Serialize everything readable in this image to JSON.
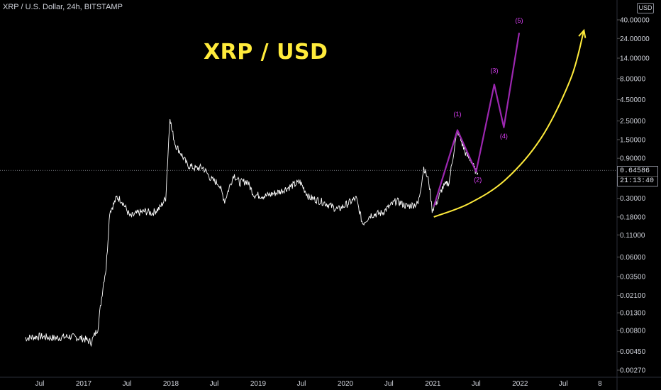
{
  "header": {
    "symbol_info": "XRP / U.S. Dollar, 24h, BITSTAMP",
    "annotation_title": "XRP / USD",
    "currency_badge": "USD"
  },
  "price_label": {
    "last_price": "0.64586",
    "countdown": "21:13:40"
  },
  "colors": {
    "background": "#000000",
    "price_line": "#ffffff",
    "arc": "#ffeb3b",
    "wave": "#9c27b0",
    "wave_label": "#e040fb",
    "axis_text": "#d1d4dc"
  },
  "chart_data": {
    "type": "line",
    "title": "",
    "xlabel": "",
    "ylabel": "",
    "y_scale": "log",
    "ylim": [
      0.0022,
      60
    ],
    "x_ticks": [
      "Jul",
      "2017",
      "Jul",
      "2018",
      "Jul",
      "2019",
      "Jul",
      "2020",
      "Jul",
      "2021",
      "Jul",
      "2022",
      "Jul",
      "8"
    ],
    "y_ticks": [
      "40.00000",
      "24.00000",
      "14.00000",
      "8.00000",
      "4.50000",
      "2.50000",
      "1.50000",
      "0.90000",
      "0.30000",
      "0.18000",
      "0.11000",
      "0.06000",
      "0.03500",
      "0.02100",
      "0.01300",
      "0.00800",
      "0.00450",
      "0.00270"
    ],
    "series": [
      {
        "x": [
          "2016-05",
          "2016-07",
          "2016-09",
          "2016-11",
          "2017-01",
          "2017-02",
          "2017-03",
          "2017-03-25",
          "2017-04-05",
          "2017-04-20",
          "2017-05-05",
          "2017-05-20",
          "2017-06-10",
          "2017-07-15",
          "2017-08-15",
          "2017-09-15",
          "2017-10-15",
          "2017-11-15",
          "2017-12-10",
          "2017-12-28",
          "2018-01-04",
          "2018-01-20",
          "2018-02-10",
          "2018-03-10",
          "2018-04-15",
          "2018-05-15",
          "2018-06-20",
          "2018-07-20",
          "2018-08-14",
          "2018-09-21",
          "2018-10-15",
          "2018-11-15",
          "2018-12-15",
          "2019-02-01",
          "2019-04-01",
          "2019-06-25",
          "2019-08-01",
          "2019-10-01",
          "2019-12-01",
          "2020-02-15",
          "2020-03-13",
          "2020-04-15",
          "2020-06-01",
          "2020-08-01",
          "2020-09-15",
          "2020-11-01",
          "2020-11-24",
          "2020-12-15",
          "2020-12-29",
          "2021-01-20",
          "2021-02-10",
          "2021-03-10",
          "2021-04-01",
          "2021-04-14",
          "2021-05-01",
          "2021-05-20",
          "2021-06-10",
          "2021-06-25",
          "2021-07-08"
        ],
        "values": [
          0.0065,
          0.0068,
          0.0065,
          0.0068,
          0.0064,
          0.0058,
          0.0085,
          0.03,
          0.045,
          0.21,
          0.25,
          0.31,
          0.28,
          0.18,
          0.2,
          0.21,
          0.2,
          0.23,
          0.3,
          2.9,
          2.0,
          1.3,
          1.05,
          0.75,
          0.68,
          0.7,
          0.5,
          0.45,
          0.28,
          0.58,
          0.46,
          0.48,
          0.33,
          0.32,
          0.36,
          0.47,
          0.31,
          0.27,
          0.22,
          0.3,
          0.15,
          0.19,
          0.2,
          0.28,
          0.24,
          0.26,
          0.7,
          0.48,
          0.22,
          0.28,
          0.4,
          0.47,
          1.2,
          1.9,
          1.4,
          1.0,
          0.85,
          0.66,
          0.6
        ]
      },
      {
        "name": "",
        "x": [
          "2021-01-05",
          "2021-04-14",
          "2021-07-01",
          "2021-09-15",
          "2021-10-25",
          "2021-12-28"
        ],
        "values": [
          0.24,
          1.95,
          0.62,
          6.8,
          2.1,
          28.0
        ]
      },
      {
        "name": "",
        "x": [
          "2021-01-05",
          "2021-06-01",
          "2021-11-01",
          "2022-04-01",
          "2022-08-01",
          "2022-09-25"
        ],
        "values": [
          0.18,
          0.26,
          0.5,
          1.6,
          8.0,
          30.0
        ]
      }
    ],
    "annotations": [
      {
        "text": "(1)",
        "x": "2021-04-14",
        "y": 2.85
      },
      {
        "text": "(3)",
        "x": "2021-09-15",
        "y": 9.4
      },
      {
        "text": "(4)",
        "x": "2021-10-25",
        "y": 1.55
      },
      {
        "text": "(5)",
        "x": "2021-12-28",
        "y": 37.0
      },
      {
        "text": "(2)",
        "x": "2021-07-08",
        "y": 0.47
      }
    ],
    "grid": false,
    "legend": "none"
  }
}
